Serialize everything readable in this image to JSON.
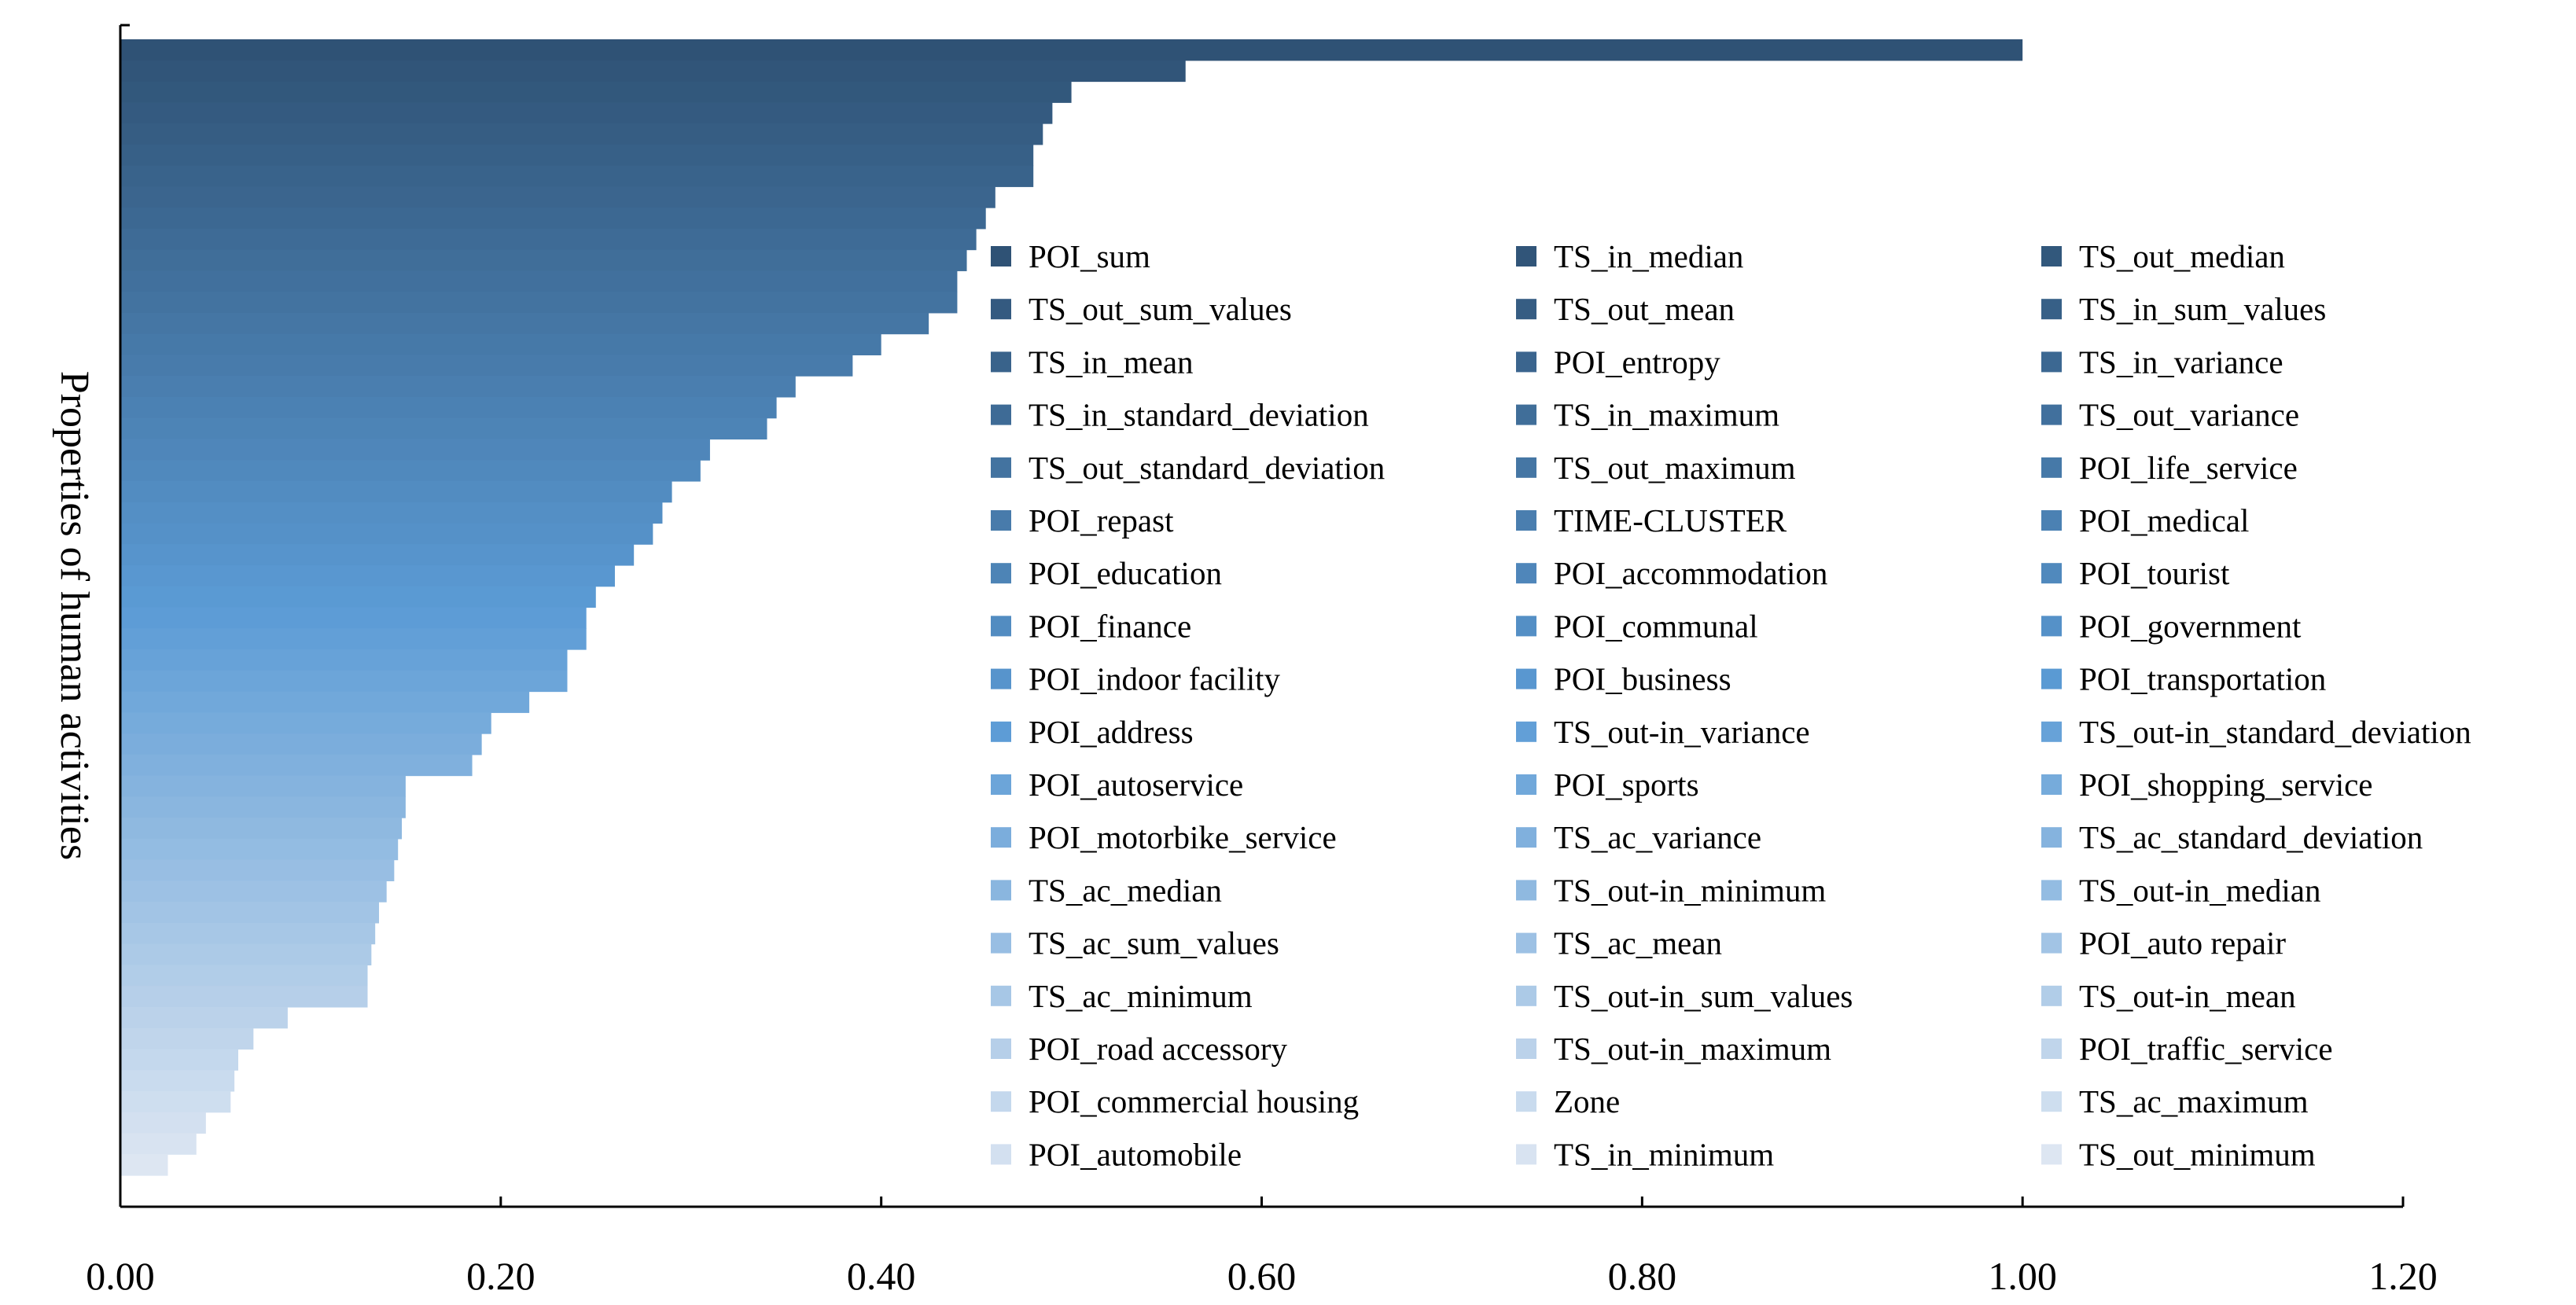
{
  "chart_data": {
    "type": "bar",
    "orientation": "horizontal",
    "title": "",
    "xlabel": "",
    "ylabel": "Properties of human activities",
    "xlim": [
      0,
      1.2
    ],
    "x_ticks": [
      "0.00",
      "0.20",
      "0.40",
      "0.60",
      "0.80",
      "1.00",
      "1.20"
    ],
    "grid": false,
    "legend_placement": "center-right",
    "legend_columns": 3,
    "color_gradient": {
      "start": "#2f5275",
      "mid": "#5b9bd5",
      "end": "#dde6f2"
    },
    "categories": [
      "POI_sum",
      "TS_in_median",
      "TS_out_median",
      "TS_out_sum_values",
      "TS_out_mean",
      "TS_in_sum_values",
      "TS_in_mean",
      "POI_entropy",
      "TS_in_variance",
      "TS_in_standard_deviation",
      "TS_in_maximum",
      "TS_out_variance",
      "TS_out_standard_deviation",
      "TS_out_maximum",
      "POI_life_service",
      "POI_repast",
      "TIME-CLUSTER",
      "POI_medical",
      "POI_education",
      "POI_accommodation",
      "POI_tourist",
      "POI_finance",
      "POI_communal",
      "POI_government",
      "POI_indoor facility",
      "POI_business",
      "POI_transportation",
      "POI_address",
      "TS_out-in_variance",
      "TS_out-in_standard_deviation",
      "POI_autoservice",
      "POI_sports",
      "POI_shopping_service",
      "POI_motorbike_service",
      "TS_ac_variance",
      "TS_ac_standard_deviation",
      "TS_ac_median",
      "TS_out-in_minimum",
      "TS_out-in_median",
      "TS_ac_sum_values",
      "TS_ac_mean",
      "POI_auto repair",
      "TS_ac_minimum",
      "TS_out-in_sum_values",
      "TS_out-in_mean",
      "POI_road accessory",
      "TS_out-in_maximum",
      "POI_traffic_service",
      "POI_commercial housing",
      "Zone",
      "TS_ac_maximum",
      "POI_automobile",
      "TS_in_minimum",
      "TS_out_minimum"
    ],
    "values": [
      1.0,
      0.56,
      0.5,
      0.49,
      0.485,
      0.48,
      0.48,
      0.46,
      0.455,
      0.45,
      0.445,
      0.44,
      0.44,
      0.425,
      0.4,
      0.385,
      0.355,
      0.345,
      0.34,
      0.31,
      0.305,
      0.29,
      0.285,
      0.28,
      0.27,
      0.26,
      0.25,
      0.245,
      0.245,
      0.235,
      0.235,
      0.215,
      0.195,
      0.19,
      0.185,
      0.15,
      0.15,
      0.148,
      0.146,
      0.144,
      0.14,
      0.136,
      0.134,
      0.132,
      0.13,
      0.13,
      0.088,
      0.07,
      0.062,
      0.06,
      0.058,
      0.045,
      0.04,
      0.025
    ]
  }
}
